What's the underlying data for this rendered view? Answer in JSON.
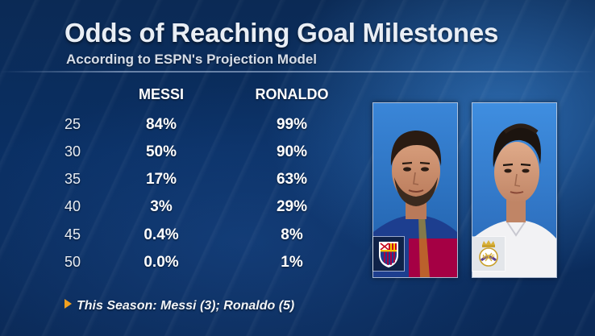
{
  "header": {
    "title": "Odds of Reaching Goal Milestones",
    "subtitle": "According to ESPN's Projection Model"
  },
  "table": {
    "columns": [
      "MESSI",
      "RONALDO"
    ],
    "rows": [
      {
        "milestone": "25",
        "messi": "84%",
        "ronaldo": "99%"
      },
      {
        "milestone": "30",
        "messi": "50%",
        "ronaldo": "90%"
      },
      {
        "milestone": "35",
        "messi": "17%",
        "ronaldo": "63%"
      },
      {
        "milestone": "40",
        "messi": "3%",
        "ronaldo": "29%"
      },
      {
        "milestone": "45",
        "messi": "0.4%",
        "ronaldo": "8%"
      },
      {
        "milestone": "50",
        "messi": "0.0%",
        "ronaldo": "1%"
      }
    ]
  },
  "footer": {
    "note": "This Season: Messi (3); Ronaldo (5)"
  },
  "colors": {
    "background": "#0b2a55",
    "accent_triangle": "#f0a020",
    "barcelona_blue": "#1d3e8f",
    "barcelona_red": "#a50044"
  },
  "icons": {
    "messi_photo": "player-portrait-icon",
    "ronaldo_photo": "player-portrait-icon",
    "barcelona": "fc-barcelona-crest-icon",
    "real_madrid": "real-madrid-crest-icon",
    "footer_bullet": "triangle-right-icon"
  }
}
